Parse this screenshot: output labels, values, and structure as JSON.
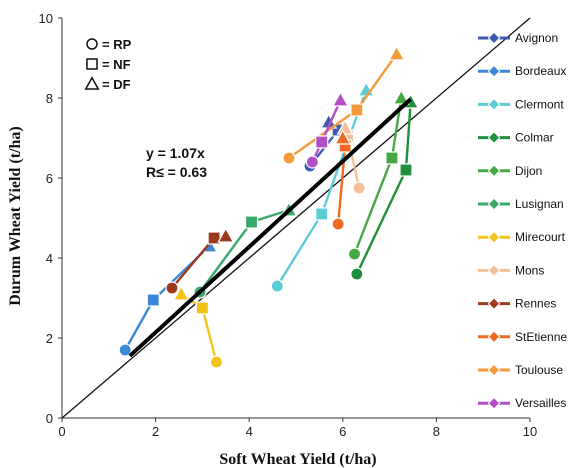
{
  "chart_data": {
    "type": "scatter",
    "xlabel": "Soft Wheat Yield (t/ha)",
    "ylabel": "Durum Wheat Yield (t/ha)",
    "xlim": [
      0,
      10
    ],
    "ylim": [
      0,
      10
    ],
    "xticks": [
      "0",
      "2",
      "4",
      "6",
      "8",
      "10"
    ],
    "yticks": [
      "0",
      "2",
      "4",
      "6",
      "8",
      "10"
    ],
    "grid": false,
    "legend_position": "right",
    "marker_key": [
      {
        "symbol": "circle",
        "label": "= RP"
      },
      {
        "symbol": "square",
        "label": "= NF"
      },
      {
        "symbol": "triangle",
        "label": "= DF"
      }
    ],
    "annotation": {
      "line1": "y = 1.07x",
      "line2": "R≤ = 0.63"
    },
    "regression": {
      "slope": 1.07,
      "x": [
        1.45,
        7.45
      ]
    },
    "identity_line": {
      "x": [
        0,
        10
      ],
      "y": [
        0,
        10
      ]
    },
    "series": [
      {
        "name": "Avignon",
        "color": "#3a5bb0",
        "points": [
          [
            5.3,
            6.3
          ],
          [
            5.9,
            7.2
          ],
          [
            5.7,
            7.4
          ]
        ]
      },
      {
        "name": "Bordeaux",
        "color": "#3b87d8",
        "points": [
          [
            1.35,
            1.7
          ],
          [
            1.95,
            2.95
          ],
          [
            3.15,
            4.3
          ]
        ]
      },
      {
        "name": "Clermont",
        "color": "#5bcbd4",
        "points": [
          [
            4.6,
            3.3
          ],
          [
            5.55,
            5.1
          ],
          [
            6.5,
            8.2
          ]
        ]
      },
      {
        "name": "Colmar",
        "color": "#1f8f3a",
        "points": [
          [
            6.3,
            3.6
          ],
          [
            7.35,
            6.2
          ],
          [
            7.45,
            7.9
          ]
        ]
      },
      {
        "name": "Dijon",
        "color": "#45a845",
        "points": [
          [
            6.25,
            4.1
          ],
          [
            7.05,
            6.5
          ],
          [
            7.25,
            8.0
          ]
        ]
      },
      {
        "name": "Lusignan",
        "color": "#3aa86a",
        "points": [
          [
            2.95,
            3.15
          ],
          [
            4.05,
            4.9
          ],
          [
            4.85,
            5.2
          ]
        ]
      },
      {
        "name": "Mirecourt",
        "color": "#f2c418",
        "points": [
          [
            3.3,
            1.4
          ],
          [
            3.0,
            2.75
          ],
          [
            2.55,
            3.1
          ]
        ]
      },
      {
        "name": "Mons",
        "color": "#f3bf98",
        "points": [
          [
            6.35,
            5.75
          ],
          [
            6.1,
            7.05
          ],
          [
            6.05,
            7.25
          ]
        ]
      },
      {
        "name": "Rennes",
        "color": "#9b3a1c",
        "points": [
          [
            2.35,
            3.25
          ],
          [
            3.25,
            4.5
          ],
          [
            3.5,
            4.55
          ]
        ]
      },
      {
        "name": "StEtienne",
        "color": "#ee6a22",
        "points": [
          [
            5.9,
            4.85
          ],
          [
            6.05,
            6.8
          ],
          [
            6.0,
            7.0
          ]
        ]
      },
      {
        "name": "Toulouse",
        "color": "#f39a3a",
        "points": [
          [
            4.85,
            6.5
          ],
          [
            6.3,
            7.7
          ],
          [
            7.15,
            9.1
          ]
        ]
      },
      {
        "name": "Versailles",
        "color": "#b24fc8",
        "points": [
          [
            5.35,
            6.4
          ],
          [
            5.55,
            6.9
          ],
          [
            5.95,
            7.95
          ]
        ]
      }
    ]
  }
}
